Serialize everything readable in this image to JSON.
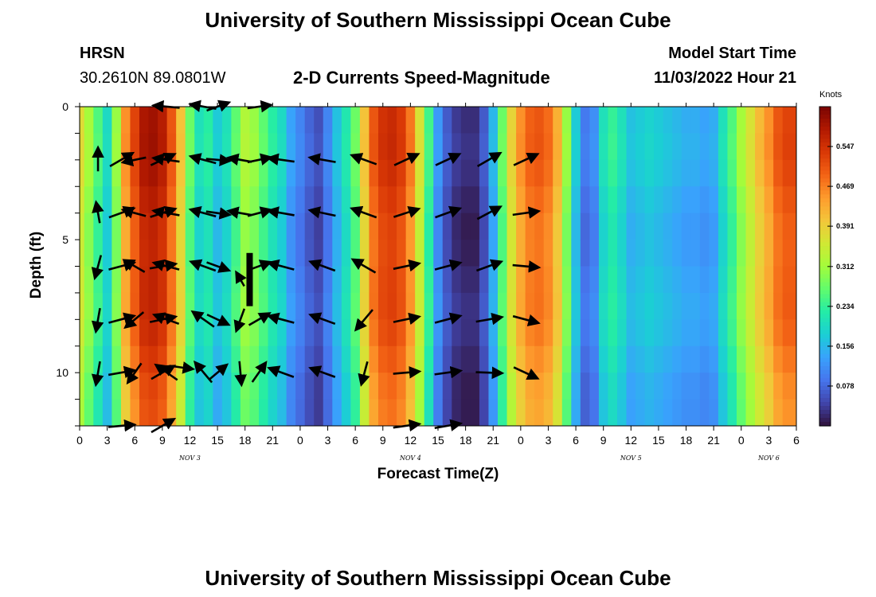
{
  "page_title": "University of Southern Mississippi Ocean Cube",
  "footer_title": "University of Southern Mississippi Ocean Cube",
  "station": {
    "name": "HRSN",
    "coords": "30.2610N  89.0801W"
  },
  "model_start": {
    "label": "Model Start Time",
    "value": "11/03/2022 Hour 21"
  },
  "chart_data": {
    "type": "heatmap",
    "title": "2-D Currents Speed-Magnitude",
    "xlabel": "Forecast Time(Z)",
    "ylabel": "Depth (ft)",
    "x_range_hours": [
      0,
      78
    ],
    "y_range_ft": [
      0,
      12
    ],
    "x_tick_labels": [
      "0",
      "3",
      "6",
      "9",
      "12",
      "15",
      "18",
      "21",
      "0",
      "3",
      "6",
      "9",
      "12",
      "15",
      "18",
      "21",
      "0",
      "3",
      "6",
      "9",
      "12",
      "15",
      "18",
      "21",
      "0",
      "3",
      "6"
    ],
    "y_tick_labels": [
      "0",
      "5",
      "10"
    ],
    "y_tick_values": [
      0,
      5,
      10
    ],
    "day_labels": [
      {
        "hour": 12,
        "label": "NOV 3"
      },
      {
        "hour": 36,
        "label": "NOV 4"
      },
      {
        "hour": 60,
        "label": "NOV 5"
      },
      {
        "hour": 75,
        "label": "NOV 6"
      }
    ],
    "colorbar": {
      "unit": "Knots",
      "min": 0.0,
      "max": 0.625,
      "tick_labels": [
        "0.078",
        "0.156",
        "0.234",
        "0.312",
        "0.391",
        "0.469",
        "0.547"
      ],
      "tick_values": [
        0.078,
        0.156,
        0.234,
        0.312,
        0.391,
        0.469,
        0.547
      ],
      "colors": [
        "#30123b",
        "#4145ab",
        "#4675ed",
        "#39a2fc",
        "#1bcfd4",
        "#24eca6",
        "#61fc6c",
        "#a4fc3b",
        "#d1e834",
        "#f3c63a",
        "#fe9b2d",
        "#f36315",
        "#d93806",
        "#b11901",
        "#7a0402"
      ]
    },
    "speed_columns": [
      {
        "hour": 0,
        "s": 0.37
      },
      {
        "hour": 1,
        "s": 0.31
      },
      {
        "hour": 2,
        "s": 0.25
      },
      {
        "hour": 3,
        "s": 0.19
      },
      {
        "hour": 4,
        "s": 0.3
      },
      {
        "hour": 5,
        "s": 0.45
      },
      {
        "hour": 6,
        "s": 0.52
      },
      {
        "hour": 7,
        "s": 0.58
      },
      {
        "hour": 8,
        "s": 0.59
      },
      {
        "hour": 9,
        "s": 0.57
      },
      {
        "hour": 10,
        "s": 0.5
      },
      {
        "hour": 11,
        "s": 0.4
      },
      {
        "hour": 12,
        "s": 0.27
      },
      {
        "hour": 13,
        "s": 0.2
      },
      {
        "hour": 14,
        "s": 0.22
      },
      {
        "hour": 15,
        "s": 0.17
      },
      {
        "hour": 16,
        "s": 0.2
      },
      {
        "hour": 17,
        "s": 0.26
      },
      {
        "hour": 18,
        "s": 0.32
      },
      {
        "hour": 19,
        "s": 0.3
      },
      {
        "hour": 20,
        "s": 0.26
      },
      {
        "hour": 21,
        "s": 0.22
      },
      {
        "hour": 22,
        "s": 0.19
      },
      {
        "hour": 23,
        "s": 0.13
      },
      {
        "hour": 24,
        "s": 0.1
      },
      {
        "hour": 25,
        "s": 0.07
      },
      {
        "hour": 26,
        "s": 0.05
      },
      {
        "hour": 27,
        "s": 0.1
      },
      {
        "hour": 28,
        "s": 0.16
      },
      {
        "hour": 29,
        "s": 0.21
      },
      {
        "hour": 30,
        "s": 0.27
      },
      {
        "hour": 31,
        "s": 0.4
      },
      {
        "hour": 32,
        "s": 0.5
      },
      {
        "hour": 33,
        "s": 0.54
      },
      {
        "hour": 34,
        "s": 0.55
      },
      {
        "hour": 35,
        "s": 0.53
      },
      {
        "hour": 36,
        "s": 0.47
      },
      {
        "hour": 37,
        "s": 0.36
      },
      {
        "hour": 38,
        "s": 0.24
      },
      {
        "hour": 39,
        "s": 0.12
      },
      {
        "hour": 40,
        "s": 0.06
      },
      {
        "hour": 41,
        "s": 0.03
      },
      {
        "hour": 42,
        "s": 0.02
      },
      {
        "hour": 43,
        "s": 0.02
      },
      {
        "hour": 44,
        "s": 0.06
      },
      {
        "hour": 45,
        "s": 0.15
      },
      {
        "hour": 46,
        "s": 0.27
      },
      {
        "hour": 47,
        "s": 0.38
      },
      {
        "hour": 48,
        "s": 0.45
      },
      {
        "hour": 49,
        "s": 0.49
      },
      {
        "hour": 50,
        "s": 0.5
      },
      {
        "hour": 51,
        "s": 0.48
      },
      {
        "hour": 52,
        "s": 0.42
      },
      {
        "hour": 53,
        "s": 0.3
      },
      {
        "hour": 54,
        "s": 0.17
      },
      {
        "hour": 55,
        "s": 0.09
      },
      {
        "hour": 56,
        "s": 0.11
      },
      {
        "hour": 57,
        "s": 0.2
      },
      {
        "hour": 58,
        "s": 0.23
      },
      {
        "hour": 59,
        "s": 0.2
      },
      {
        "hour": 60,
        "s": 0.16
      },
      {
        "hour": 61,
        "s": 0.17
      },
      {
        "hour": 62,
        "s": 0.18
      },
      {
        "hour": 63,
        "s": 0.17
      },
      {
        "hour": 64,
        "s": 0.16
      },
      {
        "hour": 65,
        "s": 0.15
      },
      {
        "hour": 66,
        "s": 0.14
      },
      {
        "hour": 67,
        "s": 0.14
      },
      {
        "hour": 68,
        "s": 0.13
      },
      {
        "hour": 69,
        "s": 0.14
      },
      {
        "hour": 70,
        "s": 0.2
      },
      {
        "hour": 71,
        "s": 0.25
      },
      {
        "hour": 72,
        "s": 0.31
      },
      {
        "hour": 73,
        "s": 0.36
      },
      {
        "hour": 74,
        "s": 0.41
      },
      {
        "hour": 75,
        "s": 0.45
      },
      {
        "hour": 76,
        "s": 0.5
      },
      {
        "hour": 77,
        "s": 0.52
      },
      {
        "hour": 78,
        "s": 0.52
      }
    ],
    "vectors": [
      {
        "hour": 4.5,
        "depth": 2,
        "dir_deg": 30,
        "len": 1
      },
      {
        "hour": 9,
        "depth": 2,
        "dir_deg": 25,
        "len": 1
      },
      {
        "hour": 4.5,
        "depth": 4,
        "dir_deg": 20,
        "len": 1
      },
      {
        "hour": 9,
        "depth": 4,
        "dir_deg": 18,
        "len": 1
      },
      {
        "hour": 4.5,
        "depth": 6,
        "dir_deg": 15,
        "len": 1
      },
      {
        "hour": 9,
        "depth": 6,
        "dir_deg": 10,
        "len": 1
      },
      {
        "hour": 4.5,
        "depth": 8,
        "dir_deg": 15,
        "len": 1
      },
      {
        "hour": 9,
        "depth": 8,
        "dir_deg": 12,
        "len": 1
      },
      {
        "hour": 4.5,
        "depth": 10,
        "dir_deg": 10,
        "len": 1
      },
      {
        "hour": 9,
        "depth": 10,
        "dir_deg": 30,
        "len": 1
      },
      {
        "hour": 4.5,
        "depth": 12,
        "dir_deg": 5,
        "len": 1
      },
      {
        "hour": 9,
        "depth": 12,
        "dir_deg": 30,
        "len": 1
      },
      {
        "hour": 11,
        "depth": 9.8,
        "dir_deg": -8,
        "len": 0.9
      },
      {
        "hour": 15,
        "depth": 0,
        "dir_deg": 20,
        "len": 0.9
      },
      {
        "hour": 19.5,
        "depth": 0,
        "dir_deg": 8,
        "len": 0.9
      },
      {
        "hour": 15,
        "depth": 2,
        "dir_deg": -5,
        "len": 0.9
      },
      {
        "hour": 19.5,
        "depth": 2,
        "dir_deg": 12,
        "len": 0.9
      },
      {
        "hour": 15,
        "depth": 4,
        "dir_deg": -8,
        "len": 0.9
      },
      {
        "hour": 19.5,
        "depth": 4,
        "dir_deg": 15,
        "len": 0.9
      },
      {
        "hour": 15,
        "depth": 6,
        "dir_deg": -20,
        "len": 0.9
      },
      {
        "hour": 19.5,
        "depth": 6,
        "dir_deg": 20,
        "len": 0.9
      },
      {
        "hour": 15,
        "depth": 8,
        "dir_deg": -25,
        "len": 0.9
      },
      {
        "hour": 19.5,
        "depth": 8,
        "dir_deg": 30,
        "len": 0.9
      },
      {
        "hour": 15,
        "depth": 10,
        "dir_deg": 40,
        "len": 0.9
      },
      {
        "hour": 19.5,
        "depth": 10,
        "dir_deg": 55,
        "len": 0.9
      },
      {
        "hour": 2,
        "depth": 2,
        "dir_deg": 90,
        "len": 0.9
      },
      {
        "hour": 2,
        "depth": 4,
        "dir_deg": 100,
        "len": 0.8
      },
      {
        "hour": 2,
        "depth": 6,
        "dir_deg": -105,
        "len": 0.9
      },
      {
        "hour": 2,
        "depth": 8,
        "dir_deg": -100,
        "len": 0.9
      },
      {
        "hour": 2,
        "depth": 10,
        "dir_deg": -100,
        "len": 0.9
      },
      {
        "hour": 6,
        "depth": 2,
        "dir_deg": -168,
        "len": 0.9
      },
      {
        "hour": 6,
        "depth": 4,
        "dir_deg": 165,
        "len": 0.9
      },
      {
        "hour": 6,
        "depth": 6,
        "dir_deg": 150,
        "len": 0.9
      },
      {
        "hour": 6,
        "depth": 8,
        "dir_deg": -140,
        "len": 0.9
      },
      {
        "hour": 6,
        "depth": 10,
        "dir_deg": -125,
        "len": 0.9
      },
      {
        "hour": 9.5,
        "depth": 0,
        "dir_deg": 175,
        "len": 1
      },
      {
        "hour": 13.5,
        "depth": 0,
        "dir_deg": 170,
        "len": 1
      },
      {
        "hour": 9.5,
        "depth": 2,
        "dir_deg": 172,
        "len": 1
      },
      {
        "hour": 13.5,
        "depth": 2,
        "dir_deg": 165,
        "len": 1
      },
      {
        "hour": 9.5,
        "depth": 4,
        "dir_deg": 170,
        "len": 1
      },
      {
        "hour": 13.5,
        "depth": 4,
        "dir_deg": 165,
        "len": 1
      },
      {
        "hour": 9.5,
        "depth": 6,
        "dir_deg": 165,
        "len": 1
      },
      {
        "hour": 13.5,
        "depth": 6,
        "dir_deg": 160,
        "len": 1
      },
      {
        "hour": 9.5,
        "depth": 8,
        "dir_deg": 160,
        "len": 1
      },
      {
        "hour": 13.5,
        "depth": 8,
        "dir_deg": 145,
        "len": 1
      },
      {
        "hour": 9.5,
        "depth": 10,
        "dir_deg": 145,
        "len": 1
      },
      {
        "hour": 13.5,
        "depth": 10,
        "dir_deg": 130,
        "len": 1
      },
      {
        "hour": 17.5,
        "depth": 2,
        "dir_deg": 170,
        "len": 0.9
      },
      {
        "hour": 17.5,
        "depth": 4,
        "dir_deg": 170,
        "len": 0.9
      },
      {
        "hour": 17.5,
        "depth": 6.5,
        "dir_deg": 120,
        "len": 0.6
      },
      {
        "hour": 17.5,
        "depth": 8,
        "dir_deg": -110,
        "len": 0.9
      },
      {
        "hour": 17.5,
        "depth": 10,
        "dir_deg": -85,
        "len": 0.9
      },
      {
        "hour": 22,
        "depth": 2,
        "dir_deg": 172,
        "len": 1
      },
      {
        "hour": 26.5,
        "depth": 2,
        "dir_deg": 170,
        "len": 1
      },
      {
        "hour": 22,
        "depth": 4,
        "dir_deg": 170,
        "len": 1
      },
      {
        "hour": 26.5,
        "depth": 4,
        "dir_deg": 168,
        "len": 1
      },
      {
        "hour": 22,
        "depth": 6,
        "dir_deg": 165,
        "len": 1
      },
      {
        "hour": 26.5,
        "depth": 6,
        "dir_deg": 160,
        "len": 1
      },
      {
        "hour": 22,
        "depth": 8,
        "dir_deg": 165,
        "len": 1
      },
      {
        "hour": 26.5,
        "depth": 8,
        "dir_deg": 160,
        "len": 1
      },
      {
        "hour": 22,
        "depth": 10,
        "dir_deg": 160,
        "len": 1
      },
      {
        "hour": 26.5,
        "depth": 10,
        "dir_deg": 160,
        "len": 1
      },
      {
        "hour": 31,
        "depth": 2,
        "dir_deg": 160,
        "len": 1
      },
      {
        "hour": 31,
        "depth": 4,
        "dir_deg": 160,
        "len": 1
      },
      {
        "hour": 31,
        "depth": 6,
        "dir_deg": 150,
        "len": 1
      },
      {
        "hour": 31,
        "depth": 8,
        "dir_deg": -130,
        "len": 1
      },
      {
        "hour": 31,
        "depth": 10,
        "dir_deg": -105,
        "len": 0.9
      },
      {
        "hour": 35.5,
        "depth": 2,
        "dir_deg": 25,
        "len": 1
      },
      {
        "hour": 40,
        "depth": 2,
        "dir_deg": 25,
        "len": 1
      },
      {
        "hour": 44.5,
        "depth": 2,
        "dir_deg": 30,
        "len": 1
      },
      {
        "hour": 48.5,
        "depth": 2,
        "dir_deg": 25,
        "len": 1
      },
      {
        "hour": 35.5,
        "depth": 4,
        "dir_deg": 18,
        "len": 1
      },
      {
        "hour": 40,
        "depth": 4,
        "dir_deg": 20,
        "len": 1
      },
      {
        "hour": 44.5,
        "depth": 4,
        "dir_deg": 28,
        "len": 1
      },
      {
        "hour": 48.5,
        "depth": 4,
        "dir_deg": 8,
        "len": 1
      },
      {
        "hour": 35.5,
        "depth": 6,
        "dir_deg": 12,
        "len": 1
      },
      {
        "hour": 40,
        "depth": 6,
        "dir_deg": 15,
        "len": 1
      },
      {
        "hour": 44.5,
        "depth": 6,
        "dir_deg": 20,
        "len": 1
      },
      {
        "hour": 48.5,
        "depth": 6,
        "dir_deg": -5,
        "len": 1
      },
      {
        "hour": 35.5,
        "depth": 8,
        "dir_deg": 12,
        "len": 1
      },
      {
        "hour": 40,
        "depth": 8,
        "dir_deg": 15,
        "len": 1
      },
      {
        "hour": 44.5,
        "depth": 8,
        "dir_deg": 10,
        "len": 1
      },
      {
        "hour": 48.5,
        "depth": 8,
        "dir_deg": -15,
        "len": 1
      },
      {
        "hour": 35.5,
        "depth": 10,
        "dir_deg": 5,
        "len": 1
      },
      {
        "hour": 40,
        "depth": 10,
        "dir_deg": 8,
        "len": 1
      },
      {
        "hour": 44.5,
        "depth": 10,
        "dir_deg": -2,
        "len": 1
      },
      {
        "hour": 48.5,
        "depth": 10,
        "dir_deg": -25,
        "len": 1
      },
      {
        "hour": 35.5,
        "depth": 12,
        "dir_deg": 8,
        "len": 1
      },
      {
        "hour": 40,
        "depth": 12,
        "dir_deg": 10,
        "len": 1
      }
    ]
  }
}
